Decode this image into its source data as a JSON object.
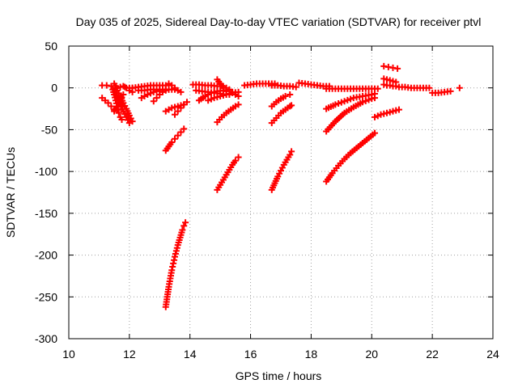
{
  "chart_data": {
    "type": "scatter",
    "title": "Day 035 of 2025, Sidereal Day-to-day VTEC variation (SDTVAR) for receiver ptvl",
    "xlabel": "GPS time / hours",
    "ylabel": "SDTVAR / TECUs",
    "xlim": [
      10,
      24
    ],
    "ylim": [
      -300,
      50
    ],
    "xticks": [
      10,
      12,
      14,
      16,
      18,
      20,
      22,
      24
    ],
    "yticks": [
      50,
      0,
      -50,
      -100,
      -150,
      -200,
      -250,
      -300
    ],
    "xtick_labels": [
      "10",
      "12",
      "14",
      "16",
      "18",
      "20",
      "22",
      "24"
    ],
    "ytick_labels": [
      "50",
      "0",
      "-50",
      "-100",
      "-150",
      "-200",
      "-250",
      "-300"
    ],
    "grid": true,
    "marker": "+",
    "color": "#ff0000",
    "series": [
      {
        "x": [
          11.1,
          11.25,
          11.4,
          11.55,
          11.7,
          11.85,
          12.0,
          12.1
        ],
        "y": [
          3,
          3,
          2,
          2,
          1,
          1,
          0,
          0
        ]
      },
      {
        "x": [
          11.1,
          11.2,
          11.3,
          11.4,
          11.5
        ],
        "y": [
          -12,
          -15,
          -18,
          -22,
          -26
        ]
      },
      {
        "x": [
          11.45,
          11.5,
          11.55,
          11.6,
          11.65,
          11.7,
          11.75
        ],
        "y": [
          -2,
          -8,
          -15,
          -22,
          -30,
          -35,
          -38
        ]
      },
      {
        "x": [
          11.5,
          11.6,
          11.7,
          11.8,
          11.9,
          12.0,
          12.1
        ],
        "y": [
          5,
          -3,
          -10,
          -18,
          -25,
          -33,
          -40
        ]
      },
      {
        "x": [
          11.5,
          11.6,
          11.7,
          11.8,
          11.9,
          12.0
        ],
        "y": [
          -5,
          -12,
          -20,
          -28,
          -35,
          -42
        ]
      },
      {
        "x": [
          11.5,
          11.6,
          11.7,
          11.8
        ],
        "y": [
          -28,
          -22,
          -15,
          -8
        ]
      },
      {
        "x": [
          11.8,
          11.9,
          12.0,
          12.1
        ],
        "y": [
          2,
          0,
          -3,
          -5
        ]
      },
      {
        "x": [
          12.1,
          12.3,
          12.5,
          12.7,
          12.9,
          13.1,
          13.3
        ],
        "y": [
          0,
          1,
          2,
          3,
          3,
          3,
          3
        ]
      },
      {
        "x": [
          12.3,
          12.5,
          12.7,
          12.9,
          13.1,
          13.3,
          13.5
        ],
        "y": [
          -3,
          -3,
          -2,
          -2,
          -2,
          -2,
          -2
        ]
      },
      {
        "x": [
          12.4,
          12.6,
          12.8,
          13.0,
          13.2
        ],
        "y": [
          -12,
          -8,
          -5,
          -3,
          -2
        ]
      },
      {
        "x": [
          12.8,
          12.9,
          13.0,
          13.1,
          13.2,
          13.3
        ],
        "y": [
          -16,
          -12,
          -8,
          -5,
          -3,
          -2
        ]
      },
      {
        "x": [
          13.3,
          13.4,
          13.5,
          13.6,
          13.7
        ],
        "y": [
          5,
          3,
          0,
          -3,
          -5
        ]
      },
      {
        "x": [
          13.2,
          13.3,
          13.4,
          13.5,
          13.6,
          13.7,
          13.8
        ],
        "y": [
          -28,
          -26,
          -24,
          -23,
          -22,
          -21,
          -20
        ]
      },
      {
        "x": [
          13.5,
          13.6,
          13.7,
          13.8,
          13.9
        ],
        "y": [
          -32,
          -28,
          -24,
          -20,
          -17
        ]
      },
      {
        "x": [
          13.2,
          13.3,
          13.4,
          13.5,
          13.6,
          13.7,
          13.8
        ],
        "y": [
          -75,
          -70,
          -65,
          -61,
          -57,
          -53,
          -49
        ]
      },
      {
        "x": [
          13.2,
          13.25,
          13.3,
          13.35,
          13.4,
          13.45,
          13.5,
          13.55,
          13.6,
          13.65,
          13.7,
          13.75,
          13.8,
          13.85
        ],
        "y": [
          -262,
          -250,
          -238,
          -228,
          -218,
          -210,
          -202,
          -195,
          -188,
          -182,
          -176,
          -170,
          -165,
          -161
        ]
      },
      {
        "x": [
          14.1,
          14.3,
          14.5,
          14.7,
          14.9,
          15.1
        ],
        "y": [
          4,
          4,
          3,
          3,
          2,
          2
        ]
      },
      {
        "x": [
          14.2,
          14.4,
          14.6,
          14.8,
          15.0,
          15.2
        ],
        "y": [
          -3,
          -4,
          -5,
          -6,
          -7,
          -8
        ]
      },
      {
        "x": [
          14.3,
          14.5,
          14.7,
          14.9,
          15.1,
          15.3
        ],
        "y": [
          -15,
          -10,
          -6,
          -4,
          -3,
          -2
        ]
      },
      {
        "x": [
          14.6,
          14.8,
          15.0,
          15.2,
          15.4,
          15.6
        ],
        "y": [
          -15,
          -12,
          -10,
          -8,
          -6,
          -5
        ]
      },
      {
        "x": [
          14.9,
          15.0,
          15.1,
          15.2,
          15.3
        ],
        "y": [
          10,
          5,
          0,
          -4,
          -8
        ]
      },
      {
        "x": [
          15.2,
          15.3,
          15.4,
          15.5,
          15.6
        ],
        "y": [
          0,
          -3,
          -5,
          -8,
          -10
        ]
      },
      {
        "x": [
          14.9,
          15.05,
          15.2,
          15.35,
          15.5,
          15.6
        ],
        "y": [
          -41,
          -35,
          -30,
          -26,
          -22,
          -20
        ]
      },
      {
        "x": [
          14.9,
          15.0,
          15.1,
          15.2,
          15.3,
          15.4,
          15.5,
          15.6
        ],
        "y": [
          -122,
          -116,
          -110,
          -104,
          -98,
          -92,
          -87,
          -83
        ]
      },
      {
        "x": [
          15.8,
          16.0,
          16.2,
          16.4,
          16.6,
          16.8
        ],
        "y": [
          3,
          4,
          5,
          5,
          5,
          5
        ]
      },
      {
        "x": [
          16.7,
          16.9,
          17.1,
          17.3,
          17.5
        ],
        "y": [
          3,
          3,
          2,
          2,
          1
        ]
      },
      {
        "x": [
          16.7,
          16.85,
          17.0,
          17.15,
          17.3
        ],
        "y": [
          -22,
          -17,
          -13,
          -10,
          -8
        ]
      },
      {
        "x": [
          16.7,
          16.85,
          17.0,
          17.15,
          17.3,
          17.35
        ],
        "y": [
          -42,
          -36,
          -30,
          -26,
          -22,
          -21
        ]
      },
      {
        "x": [
          16.7,
          16.8,
          16.9,
          17.0,
          17.1,
          17.2,
          17.3,
          17.35
        ],
        "y": [
          -122,
          -114,
          -106,
          -99,
          -92,
          -86,
          -80,
          -76
        ]
      },
      {
        "x": [
          17.6,
          17.8,
          18.0,
          18.2,
          18.4,
          18.6
        ],
        "y": [
          6,
          5,
          4,
          3,
          2,
          2
        ]
      },
      {
        "x": [
          18.5,
          18.8,
          19.1,
          19.4,
          19.7,
          20.0,
          20.2
        ],
        "y": [
          -1,
          -1,
          -1,
          -1,
          -1,
          -1,
          -1
        ]
      },
      {
        "x": [
          18.5,
          18.8,
          19.1,
          19.4,
          19.7,
          20.0,
          20.1
        ],
        "y": [
          -25,
          -20,
          -16,
          -12,
          -10,
          -8,
          -7
        ]
      },
      {
        "x": [
          18.5,
          18.8,
          19.1,
          19.4,
          19.7,
          20.0,
          20.1
        ],
        "y": [
          -52,
          -40,
          -30,
          -23,
          -17,
          -13,
          -12
        ]
      },
      {
        "x": [
          18.5,
          18.7,
          18.9,
          19.1,
          19.3,
          19.5,
          19.7,
          19.9,
          20.1
        ],
        "y": [
          -112,
          -102,
          -93,
          -85,
          -78,
          -72,
          -66,
          -60,
          -54
        ]
      },
      {
        "x": [
          20.1,
          20.3,
          20.5,
          20.7,
          20.9
        ],
        "y": [
          -35,
          -32,
          -30,
          -28,
          -26
        ]
      },
      {
        "x": [
          20.4,
          20.55,
          20.7,
          20.85
        ],
        "y": [
          26,
          25,
          24,
          23
        ]
      },
      {
        "x": [
          20.4,
          20.5,
          20.6,
          20.7,
          20.8
        ],
        "y": [
          11,
          10,
          9,
          8,
          7
        ]
      },
      {
        "x": [
          20.4,
          20.5,
          20.6,
          20.7,
          20.8
        ],
        "y": [
          4,
          3,
          3,
          2,
          2
        ]
      },
      {
        "x": [
          20.9,
          21.1,
          21.3,
          21.5,
          21.7,
          21.9
        ],
        "y": [
          1,
          1,
          0,
          0,
          0,
          0
        ]
      },
      {
        "x": [
          22.0,
          22.2,
          22.4,
          22.6
        ],
        "y": [
          -6,
          -6,
          -5,
          -4
        ]
      },
      {
        "x": [
          22.9
        ],
        "y": [
          0
        ]
      }
    ]
  }
}
